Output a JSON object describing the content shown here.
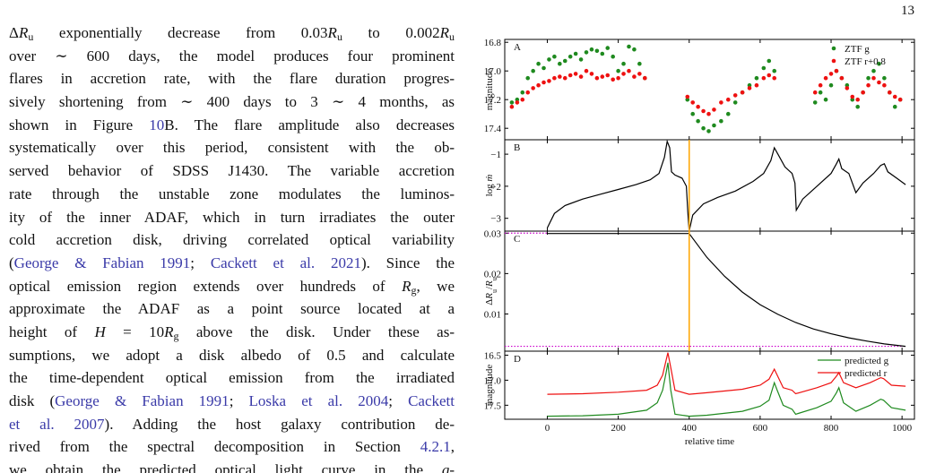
{
  "page_number": "13",
  "paragraph": {
    "lines": [
      [
        "Δ",
        {
          "i": "R"
        },
        {
          "sub": "u"
        },
        " exponentially decrease from 0.03",
        {
          "i": "R"
        },
        {
          "sub": "u"
        },
        " to 0.002",
        {
          "i": "R"
        },
        {
          "sub": "u"
        }
      ],
      [
        "over ∼ 600 days, the model produces four prominent"
      ],
      [
        "flares in accretion rate, with the flare duration progres-"
      ],
      [
        "sively shortening from ∼ 400 days to 3 ∼ 4 months, as"
      ],
      [
        "shown in Figure ",
        {
          "link": "10"
        },
        "B. The flare amplitude also decreases"
      ],
      [
        "systematically over this period, consistent with the ob-"
      ],
      [
        "served behavior of SDSS J1430. The variable accretion"
      ],
      [
        "rate through the unstable zone modulates the luminos-"
      ],
      [
        "ity of the inner ADAF, which in turn irradiates the outer"
      ],
      [
        "cold accretion disk, driving correlated optical variability"
      ],
      [
        "(",
        {
          "link": "George & Fabian 1991"
        },
        "; ",
        {
          "link": "Cackett et al. 2021"
        },
        "). Since the"
      ],
      [
        "optical emission region extends over hundreds of ",
        {
          "i": "R"
        },
        {
          "sub": "g"
        },
        ", we"
      ],
      [
        "approximate the ADAF as a point source located at a"
      ],
      [
        "height of ",
        {
          "i": "H"
        },
        " = 10",
        {
          "i": "R"
        },
        {
          "sub": "g"
        },
        " above the disk. Under these as-"
      ],
      [
        "sumptions, we adopt a disk albedo of 0.5 and calculate"
      ],
      [
        "the time-dependent optical emission from the irradiated"
      ],
      [
        "disk (",
        {
          "link": "George & Fabian 1991"
        },
        "; ",
        {
          "link": "Loska et al. 2004"
        },
        "; ",
        {
          "link": "Cackett"
        }
      ],
      [
        {
          "link": "et al. 2007"
        },
        "). Adding the host galaxy contribution de-"
      ],
      [
        "rived from the spectral decomposition in Section ",
        {
          "link": "4.2.1"
        },
        ","
      ],
      [
        "we obtain the predicted optical light curve in the ",
        {
          "i": "g"
        },
        "-"
      ]
    ]
  },
  "figure": {
    "xlabel": "relative time",
    "xlim": [
      -120,
      1035
    ],
    "xticks": [
      0,
      200,
      400,
      600,
      800,
      1000
    ],
    "vline": {
      "x": 400,
      "color": "#ffa500"
    },
    "panels": [
      {
        "type": "scatter",
        "label": "A",
        "ylabel": [
          "magnitude"
        ],
        "ylim": [
          16.78,
          17.48
        ],
        "inverted": true,
        "yticks": [
          16.8,
          {
            "value": 17,
            "label": "17.0"
          },
          17.2,
          17.4
        ],
        "legend": "upper right",
        "series": [
          {
            "name": "ZTF g",
            "color": "#1f8a1f",
            "x": [
              -100,
              -85,
              -70,
              -55,
              -40,
              -25,
              -10,
              5,
              20,
              35,
              50,
              65,
              80,
              95,
              110,
              125,
              140,
              155,
              170,
              185,
              200,
              215,
              230,
              245,
              260,
              275,
              395,
              410,
              425,
              440,
              455,
              470,
              490,
              510,
              530,
              550,
              570,
              590,
              610,
              625,
              640,
              755,
              770,
              785,
              800,
              815,
              830,
              845,
              860,
              875,
              890,
              905,
              920,
              935,
              950,
              965,
              980,
              995
            ],
            "values": [
              17.22,
              17.2,
              17.15,
              17.05,
              17.0,
              16.95,
              16.98,
              16.92,
              16.9,
              16.95,
              16.93,
              16.9,
              16.88,
              16.92,
              16.87,
              16.85,
              16.86,
              16.88,
              16.84,
              16.9,
              17.0,
              16.95,
              16.83,
              16.85,
              16.95,
              17.05,
              17.2,
              17.3,
              17.35,
              17.4,
              17.42,
              17.38,
              17.35,
              17.3,
              17.22,
              17.15,
              17.1,
              17.05,
              16.98,
              16.93,
              17.0,
              17.22,
              17.15,
              17.2,
              17.1,
              17.0,
              17.05,
              17.1,
              17.2,
              17.25,
              17.15,
              17.05,
              17.0,
              16.95,
              17.05,
              17.15,
              17.25,
              17.2
            ]
          },
          {
            "name": "ZTF r+0.8",
            "color": "#ee1111",
            "x": [
              -100,
              -85,
              -70,
              -55,
              -40,
              -25,
              -10,
              5,
              20,
              35,
              50,
              65,
              80,
              95,
              110,
              125,
              140,
              155,
              170,
              185,
              200,
              215,
              230,
              245,
              260,
              275,
              395,
              410,
              425,
              440,
              455,
              470,
              490,
              510,
              530,
              550,
              570,
              590,
              610,
              625,
              640,
              755,
              770,
              785,
              800,
              815,
              830,
              845,
              860,
              875,
              890,
              905,
              920,
              935,
              950,
              965,
              980,
              995
            ],
            "values": [
              17.25,
              17.22,
              17.2,
              17.15,
              17.12,
              17.1,
              17.08,
              17.07,
              17.05,
              17.04,
              17.05,
              17.03,
              17.02,
              17.04,
              17.0,
              17.02,
              17.05,
              17.04,
              17.03,
              17.06,
              17.05,
              17.02,
              17.0,
              17.04,
              17.02,
              17.05,
              17.18,
              17.22,
              17.25,
              17.28,
              17.3,
              17.27,
              17.22,
              17.2,
              17.17,
              17.15,
              17.12,
              17.1,
              17.05,
              17.03,
              17.05,
              17.15,
              17.1,
              17.05,
              17.02,
              17.0,
              17.05,
              17.12,
              17.18,
              17.2,
              17.15,
              17.1,
              17.05,
              17.08,
              17.1,
              17.15,
              17.18,
              17.2
            ]
          }
        ]
      },
      {
        "type": "line",
        "label": "B",
        "ylabel": [
          "log ",
          {
            "i": "ṁ"
          }
        ],
        "ylim": [
          -3.4,
          -0.55
        ],
        "yticks": [
          {
            "value": -1,
            "label": "−1"
          },
          {
            "value": -2,
            "label": "−2"
          },
          {
            "value": -3,
            "label": "−3"
          }
        ],
        "series": [
          {
            "color": "#000000",
            "x": [
              0,
              20,
              50,
              100,
              150,
              200,
              250,
              290,
              315,
              330,
              338,
              345,
              350,
              360,
              380,
              392,
              396,
              400,
              410,
              440,
              480,
              530,
              580,
              610,
              630,
              640,
              650,
              670,
              690,
              698,
              702,
              720,
              760,
              800,
              815,
              822,
              830,
              850,
              870,
              890,
              920,
              940,
              950,
              960,
              985,
              1010
            ],
            "values": [
              -3.3,
              -2.85,
              -2.6,
              -2.4,
              -2.25,
              -2.1,
              -1.95,
              -1.8,
              -1.6,
              -1.1,
              -0.6,
              -0.8,
              -1.55,
              -1.65,
              -1.75,
              -2.0,
              -2.8,
              -3.4,
              -2.9,
              -2.55,
              -2.35,
              -2.15,
              -1.85,
              -1.6,
              -1.2,
              -0.8,
              -1.0,
              -1.4,
              -1.6,
              -1.9,
              -2.75,
              -2.4,
              -2.0,
              -1.6,
              -1.3,
              -1.15,
              -1.45,
              -1.6,
              -2.2,
              -1.9,
              -1.6,
              -1.35,
              -1.3,
              -1.55,
              -1.75,
              -1.95
            ]
          }
        ]
      },
      {
        "type": "line",
        "label": "C",
        "ylabel": [
          "Δ",
          {
            "i": "R"
          },
          {
            "sub": "u"
          },
          "/",
          {
            "i": "R"
          },
          {
            "sub": "u"
          }
        ],
        "ylim": [
          0.0008,
          0.0305
        ],
        "yticks": [
          0.03,
          0.02,
          0.01
        ],
        "reference_lines": [
          {
            "y": 0.03,
            "x": [
              -120,
              0
            ]
          },
          {
            "y": 0.002,
            "x": [
              -120,
              1010
            ]
          }
        ],
        "reference_color": "#cc00cc",
        "series": [
          {
            "color": "#000000",
            "x": [
              0,
              200,
              400,
              450,
              500,
              550,
              600,
              650,
              700,
              750,
              800,
              850,
              900,
              950,
              1010
            ],
            "values": [
              0.0299,
              0.0299,
              0.0299,
              0.024,
              0.0193,
              0.0154,
              0.0123,
              0.0099,
              0.0079,
              0.0063,
              0.0051,
              0.0041,
              0.0033,
              0.0026,
              0.002
            ]
          }
        ]
      },
      {
        "type": "line",
        "label": "D",
        "ylabel": [
          "magnitude"
        ],
        "ylim": [
          16.42,
          17.78
        ],
        "inverted": true,
        "yticks": [
          16.5,
          {
            "value": 17,
            "label": "17.0"
          },
          17.5
        ],
        "legend": "upper right",
        "series": [
          {
            "name": "predicted g",
            "color": "#1f8a1f",
            "x": [
              0,
              100,
              200,
              280,
              310,
              325,
              335,
              340,
              348,
              360,
              400,
              450,
              550,
              600,
              625,
              640,
              648,
              665,
              690,
              700,
              760,
              800,
              815,
              822,
              835,
              870,
              910,
              940,
              948,
              970,
              1010
            ],
            "values": [
              17.72,
              17.71,
              17.68,
              17.6,
              17.45,
              17.2,
              16.85,
              16.65,
              17.2,
              17.68,
              17.72,
              17.7,
              17.62,
              17.52,
              17.4,
              17.05,
              17.2,
              17.5,
              17.58,
              17.68,
              17.55,
              17.42,
              17.25,
              17.15,
              17.45,
              17.62,
              17.5,
              17.38,
              17.4,
              17.55,
              17.6
            ]
          },
          {
            "name": "predicted r",
            "color": "#ee1111",
            "x": [
              0,
              100,
              200,
              280,
              310,
              325,
              335,
              340,
              348,
              360,
              400,
              450,
              550,
              600,
              625,
              640,
              648,
              665,
              690,
              700,
              760,
              800,
              815,
              822,
              835,
              870,
              910,
              940,
              948,
              970,
              1010
            ],
            "values": [
              17.28,
              17.27,
              17.24,
              17.2,
              17.1,
              16.9,
              16.6,
              16.45,
              16.75,
              17.2,
              17.28,
              17.25,
              17.18,
              17.1,
              16.98,
              16.78,
              16.9,
              17.15,
              17.2,
              17.27,
              17.15,
              17.05,
              16.92,
              16.85,
              17.05,
              17.15,
              17.05,
              16.95,
              16.97,
              17.1,
              17.12
            ]
          }
        ]
      }
    ]
  }
}
